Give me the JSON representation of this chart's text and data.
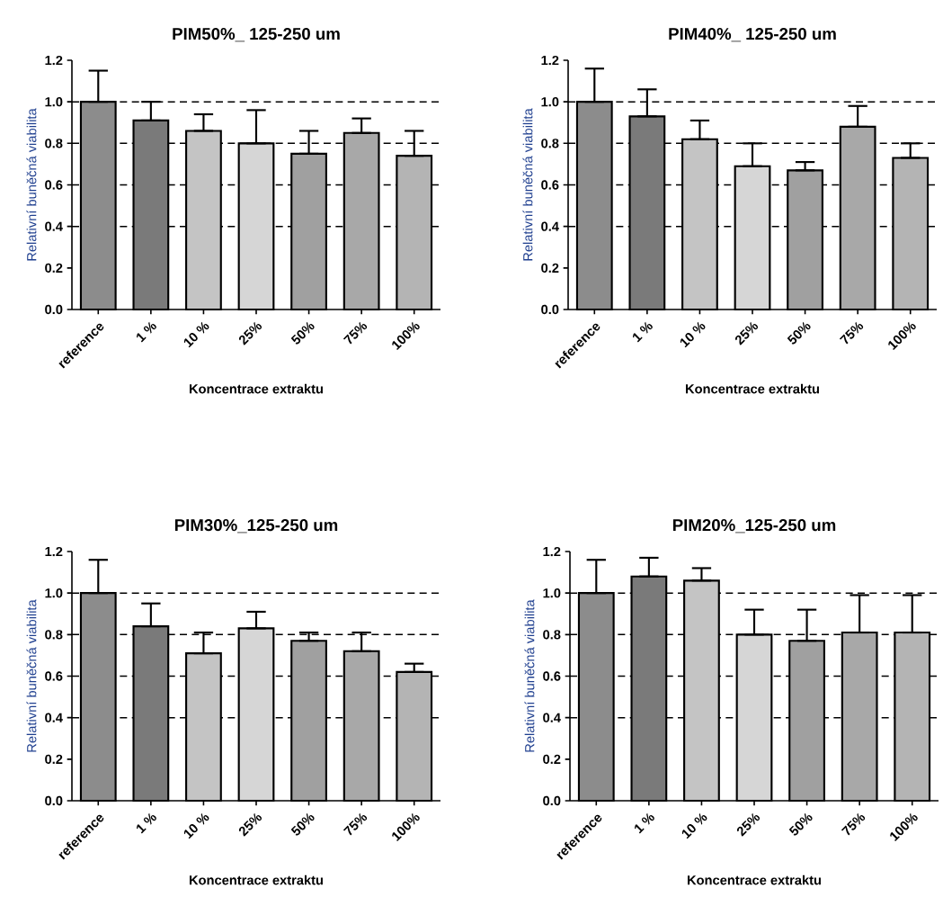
{
  "chart_data": [
    {
      "type": "bar",
      "title": "PIM50%_ 125-250 um",
      "xlabel": "Koncentrace extraktu",
      "ylabel": "Relativní buněčná viabilita",
      "colors": [
        "#8c8c8c",
        "#7a7a7a",
        "#c4c4c4",
        "#d6d6d6",
        "#a0a0a0",
        "#a8a8a8",
        "#b4b4b4"
      ],
      "categories": [
        "reference",
        "1 %",
        "10 %",
        "25%",
        "50%",
        "75%",
        "100%"
      ],
      "values": [
        1.0,
        0.91,
        0.86,
        0.8,
        0.75,
        0.85,
        0.74
      ],
      "errors": [
        [
          1.0,
          1.15
        ],
        [
          0.91,
          1.0
        ],
        [
          0.86,
          0.94
        ],
        [
          0.8,
          0.96
        ],
        [
          0.75,
          0.86
        ],
        [
          0.85,
          0.92
        ],
        [
          0.74,
          0.86
        ]
      ],
      "ylim": [
        0,
        1.2
      ],
      "yticks": [
        {
          "value": 0,
          "label": "0.0"
        },
        {
          "value": 0.2,
          "label": "0.2"
        },
        {
          "value": 0.4,
          "label": "0.4"
        },
        {
          "value": 0.6,
          "label": "0.6"
        },
        {
          "value": 0.8,
          "label": "0.8"
        },
        {
          "value": 1.0,
          "label": "1.0"
        },
        {
          "value": 1.2,
          "label": "1.2"
        }
      ],
      "ref_lines": [
        {
          "axis": "y",
          "value": 0.4,
          "line_style": "dashed"
        },
        {
          "axis": "y",
          "value": 0.6,
          "line_style": "dashed"
        },
        {
          "axis": "y",
          "value": 0.8,
          "line_style": "dashed"
        },
        {
          "axis": "y",
          "value": 1.0,
          "line_style": "dashed"
        }
      ]
    },
    {
      "type": "bar",
      "title": "PIM40%_ 125-250 um",
      "xlabel": "Koncentrace extraktu",
      "ylabel": "Relativní buněčná viabilita",
      "colors": [
        "#8c8c8c",
        "#7a7a7a",
        "#c4c4c4",
        "#d6d6d6",
        "#a0a0a0",
        "#a8a8a8",
        "#b4b4b4"
      ],
      "categories": [
        "reference",
        "1 %",
        "10 %",
        "25%",
        "50%",
        "75%",
        "100%"
      ],
      "values": [
        1.0,
        0.93,
        0.82,
        0.69,
        0.67,
        0.88,
        0.73
      ],
      "errors": [
        [
          1.0,
          1.16
        ],
        [
          0.93,
          1.06
        ],
        [
          0.82,
          0.91
        ],
        [
          0.69,
          0.8
        ],
        [
          0.67,
          0.71
        ],
        [
          0.88,
          0.98
        ],
        [
          0.73,
          0.8
        ]
      ],
      "ylim": [
        0,
        1.2
      ],
      "yticks": [
        {
          "value": 0,
          "label": "0.0"
        },
        {
          "value": 0.2,
          "label": "0.2"
        },
        {
          "value": 0.4,
          "label": "0.4"
        },
        {
          "value": 0.6,
          "label": "0.6"
        },
        {
          "value": 0.8,
          "label": "0.8"
        },
        {
          "value": 1.0,
          "label": "1.0"
        },
        {
          "value": 1.2,
          "label": "1.2"
        }
      ],
      "ref_lines": [
        {
          "axis": "y",
          "value": 0.4,
          "line_style": "dashed"
        },
        {
          "axis": "y",
          "value": 0.6,
          "line_style": "dashed"
        },
        {
          "axis": "y",
          "value": 0.8,
          "line_style": "dashed"
        },
        {
          "axis": "y",
          "value": 1.0,
          "line_style": "dashed"
        }
      ]
    },
    {
      "type": "bar",
      "title": "PIM30%_125-250 um",
      "xlabel": "Koncentrace extraktu",
      "ylabel": "Relativní buněčná viabilita",
      "colors": [
        "#8c8c8c",
        "#7a7a7a",
        "#c4c4c4",
        "#d6d6d6",
        "#a0a0a0",
        "#a8a8a8",
        "#b4b4b4"
      ],
      "categories": [
        "reference",
        "1 %",
        "10 %",
        "25%",
        "50%",
        "75%",
        "100%"
      ],
      "values": [
        1.0,
        0.84,
        0.71,
        0.83,
        0.77,
        0.72,
        0.62
      ],
      "errors": [
        [
          1.0,
          1.16
        ],
        [
          0.84,
          0.95
        ],
        [
          0.71,
          0.81
        ],
        [
          0.83,
          0.91
        ],
        [
          0.77,
          0.81
        ],
        [
          0.72,
          0.81
        ],
        [
          0.62,
          0.66
        ]
      ],
      "ylim": [
        0,
        1.2
      ],
      "yticks": [
        {
          "value": 0,
          "label": "0.0"
        },
        {
          "value": 0.2,
          "label": "0.2"
        },
        {
          "value": 0.4,
          "label": "0.4"
        },
        {
          "value": 0.6,
          "label": "0.6"
        },
        {
          "value": 0.8,
          "label": "0.8"
        },
        {
          "value": 1.0,
          "label": "1.0"
        },
        {
          "value": 1.2,
          "label": "1.2"
        }
      ],
      "ref_lines": [
        {
          "axis": "y",
          "value": 0.4,
          "line_style": "dashed"
        },
        {
          "axis": "y",
          "value": 0.6,
          "line_style": "dashed"
        },
        {
          "axis": "y",
          "value": 0.8,
          "line_style": "dashed"
        },
        {
          "axis": "y",
          "value": 1.0,
          "line_style": "dashed"
        }
      ]
    },
    {
      "type": "bar",
      "title": "PIM20%_125-250 um",
      "xlabel": "Koncentrace extraktu",
      "ylabel": "Relativní buněčná viabilita",
      "colors": [
        "#8c8c8c",
        "#7a7a7a",
        "#c4c4c4",
        "#d6d6d6",
        "#a0a0a0",
        "#a8a8a8",
        "#b4b4b4"
      ],
      "categories": [
        "reference",
        "1 %",
        "10 %",
        "25%",
        "50%",
        "75%",
        "100%"
      ],
      "values": [
        1.0,
        1.08,
        1.06,
        0.8,
        0.77,
        0.81,
        0.81
      ],
      "errors": [
        [
          1.0,
          1.16
        ],
        [
          1.08,
          1.17
        ],
        [
          1.06,
          1.12
        ],
        [
          0.8,
          0.92
        ],
        [
          0.77,
          0.92
        ],
        [
          0.81,
          0.99
        ],
        [
          0.81,
          0.99
        ]
      ],
      "ylim": [
        0,
        1.2
      ],
      "yticks": [
        {
          "value": 0,
          "label": "0.0"
        },
        {
          "value": 0.2,
          "label": "0.2"
        },
        {
          "value": 0.4,
          "label": "0.4"
        },
        {
          "value": 0.6,
          "label": "0.6"
        },
        {
          "value": 0.8,
          "label": "0.8"
        },
        {
          "value": 1.0,
          "label": "1.0"
        },
        {
          "value": 1.2,
          "label": "1.2"
        }
      ],
      "ref_lines": [
        {
          "axis": "y",
          "value": 0.4,
          "line_style": "dashed"
        },
        {
          "axis": "y",
          "value": 0.6,
          "line_style": "dashed"
        },
        {
          "axis": "y",
          "value": 0.8,
          "line_style": "dashed"
        },
        {
          "axis": "y",
          "value": 1.0,
          "line_style": "dashed"
        }
      ]
    }
  ]
}
